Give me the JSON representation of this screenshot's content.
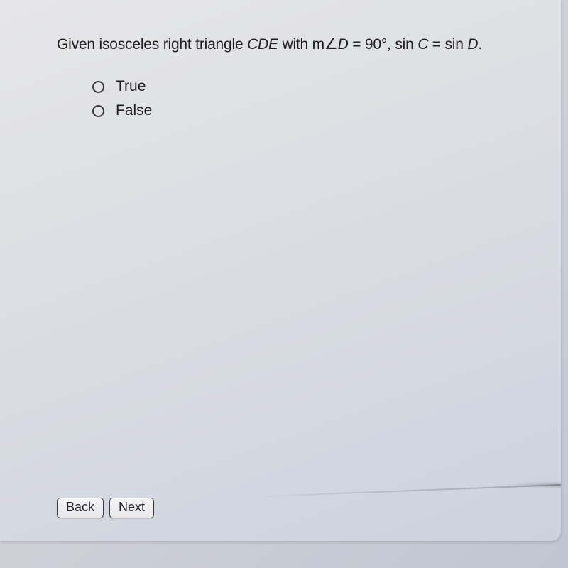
{
  "question": {
    "prefix": "Given isosceles right triangle ",
    "triangle": "CDE",
    "mid1": " with m",
    "angle_sym": "∠",
    "angle_var": "D",
    "mid2": " = 90°, sin ",
    "varC": "C",
    "mid3": " = sin ",
    "varD": "D",
    "suffix": "."
  },
  "options": [
    {
      "label": "True",
      "selected": false
    },
    {
      "label": "False",
      "selected": false
    }
  ],
  "buttons": {
    "back": "Back",
    "next": "Next"
  },
  "style": {
    "text_color": "#1f1f1f",
    "radio_border": "#3a3a3a",
    "btn_border": "#3b3b3b",
    "panel_bg_top": "#e6e6e8",
    "panel_bg_bot": "#ccd1de",
    "body_bg_top": "#dcdde0",
    "body_bg_bot": "#c0c5d0",
    "font_size_question": 21,
    "font_size_option": 21,
    "font_size_button": 18,
    "radio_diameter": 17
  }
}
